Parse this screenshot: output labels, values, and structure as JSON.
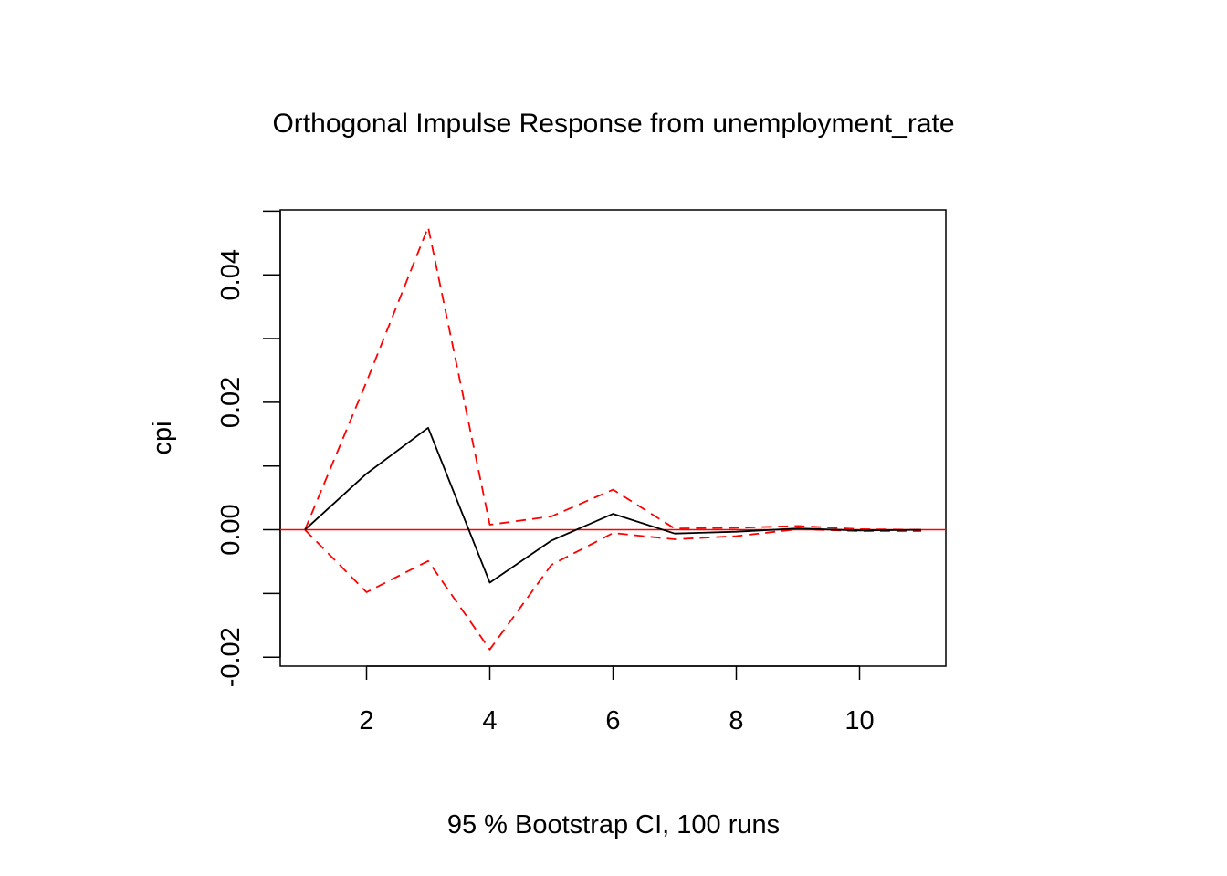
{
  "chart_data": {
    "type": "line",
    "title": "Orthogonal Impulse Response from unemployment_rate",
    "xlabel": "95 % Bootstrap CI,  100 runs",
    "ylabel": "cpi",
    "xlim": [
      0.6,
      11.4
    ],
    "ylim": [
      -0.0214,
      0.0502
    ],
    "x_ticks": [
      2,
      4,
      6,
      8,
      10
    ],
    "x_tick_labels": [
      "2",
      "4",
      "6",
      "8",
      "10"
    ],
    "y_ticks": [
      -0.02,
      -0.01,
      0.0,
      0.01,
      0.02,
      0.03,
      0.04,
      0.05
    ],
    "y_tick_labels": [
      "-0.02",
      "",
      "0.00",
      "",
      "0.02",
      "",
      "0.04",
      ""
    ],
    "x": [
      1,
      2,
      3,
      4,
      5,
      6,
      7,
      8,
      9,
      10,
      11
    ],
    "series": [
      {
        "values": [
          0.0,
          0.0088,
          0.016,
          -0.0083,
          -0.0017,
          0.0025,
          -0.0006,
          -0.0003,
          0.0002,
          -0.0001,
          0.0
        ],
        "color": "#000000",
        "dash": "solid"
      },
      {
        "values": [
          0.0,
          0.0232,
          0.0475,
          0.0008,
          0.0021,
          0.0063,
          0.0002,
          0.0003,
          0.0006,
          0.0001,
          0.0
        ],
        "color": "#ff0000",
        "dash": "dashed"
      },
      {
        "values": [
          0.0,
          -0.0098,
          -0.0049,
          -0.0188,
          -0.0055,
          -0.0005,
          -0.0015,
          -0.001,
          0.0001,
          -0.0002,
          -0.0002
        ],
        "color": "#ff0000",
        "dash": "dashed"
      }
    ],
    "reference_line": {
      "y": 0,
      "color": "#ff0000"
    },
    "grid": false,
    "legend": "none"
  }
}
